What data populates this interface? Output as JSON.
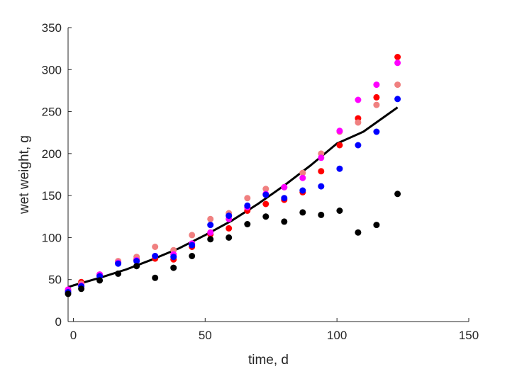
{
  "chart_data": {
    "type": "scatter",
    "title": "",
    "xlabel": "time, d",
    "ylabel": "wet weight, g",
    "xlim": [
      -2,
      150
    ],
    "ylim": [
      0,
      350
    ],
    "xticks": [
      0,
      50,
      100,
      150
    ],
    "yticks": [
      0,
      50,
      100,
      150,
      200,
      250,
      300,
      350
    ],
    "grid": false,
    "legend": "none",
    "colors": {
      "axis": "#262626",
      "fit": "#000000"
    },
    "series": [
      {
        "color": "#ff0000",
        "x": [
          -2,
          3,
          10,
          17,
          24,
          31,
          38,
          45,
          52,
          59,
          66,
          73,
          80,
          87,
          94,
          101,
          108,
          115,
          123
        ],
        "y": [
          37,
          47,
          55,
          70,
          74,
          75,
          74,
          89,
          104,
          111,
          132,
          140,
          145,
          154,
          179,
          210,
          242,
          267,
          315
        ]
      },
      {
        "color": "#f08080",
        "x": [
          -2,
          3,
          10,
          17,
          24,
          31,
          38,
          45,
          52,
          59,
          66,
          73,
          80,
          87,
          94,
          101,
          108,
          115,
          123
        ],
        "y": [
          38,
          45,
          56,
          72,
          77,
          89,
          85,
          103,
          122,
          129,
          147,
          158,
          160,
          177,
          200,
          226,
          237,
          258,
          282
        ]
      },
      {
        "color": "#ff00ff",
        "x": [
          -2,
          3,
          10,
          17,
          24,
          31,
          38,
          45,
          52,
          59,
          66,
          73,
          80,
          87,
          94,
          101,
          108,
          115,
          123
        ],
        "y": [
          38,
          43,
          56,
          70,
          73,
          78,
          80,
          93,
          106,
          122,
          136,
          152,
          160,
          171,
          195,
          227,
          264,
          282,
          308
        ]
      },
      {
        "color": "#0000ff",
        "x": [
          -2,
          3,
          10,
          17,
          24,
          31,
          38,
          45,
          52,
          59,
          66,
          73,
          80,
          87,
          94,
          101,
          108,
          115,
          123
        ],
        "y": [
          35,
          42,
          54,
          69,
          72,
          78,
          77,
          91,
          115,
          126,
          138,
          151,
          147,
          156,
          161,
          182,
          210,
          226,
          265
        ]
      },
      {
        "color": "#000000",
        "x": [
          -2,
          3,
          10,
          17,
          24,
          31,
          38,
          45,
          52,
          59,
          66,
          73,
          80,
          87,
          94,
          101,
          108,
          115,
          123
        ],
        "y": [
          33,
          39,
          49,
          57,
          66,
          52,
          64,
          78,
          98,
          100,
          116,
          125,
          119,
          130,
          127,
          132,
          106,
          115,
          152
        ]
      }
    ],
    "fit_line": {
      "color": "#000000",
      "x": [
        -2,
        0,
        10,
        20,
        30,
        40,
        50,
        60,
        70,
        80,
        90,
        100,
        110,
        123
      ],
      "y": [
        41,
        43,
        52,
        62,
        74,
        87,
        103,
        120,
        140,
        162,
        186,
        212,
        226,
        255
      ]
    }
  }
}
